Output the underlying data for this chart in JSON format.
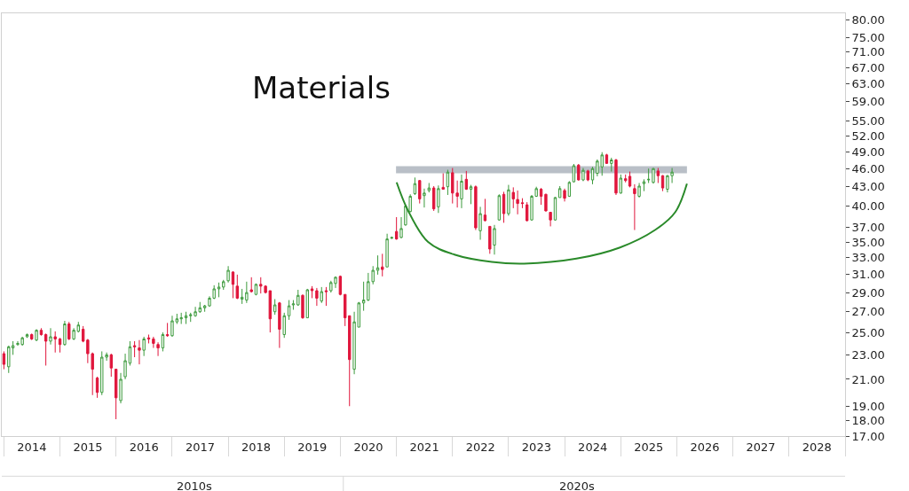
{
  "chart_data": {
    "type": "candlestick",
    "title": "Materials",
    "x": [
      "2014-01",
      "2014-02",
      "2014-03",
      "2014-04",
      "2014-05",
      "2014-06",
      "2014-07",
      "2014-08",
      "2014-09",
      "2014-10",
      "2014-11",
      "2014-12",
      "2015-01",
      "2015-02",
      "2015-03",
      "2015-04",
      "2015-05",
      "2015-06",
      "2015-07",
      "2015-08",
      "2015-09",
      "2015-10",
      "2015-11",
      "2015-12",
      "2016-01",
      "2016-02",
      "2016-03",
      "2016-04",
      "2016-05",
      "2016-06",
      "2016-07",
      "2016-08",
      "2016-09",
      "2016-10",
      "2016-11",
      "2016-12",
      "2017-01",
      "2017-02",
      "2017-03",
      "2017-04",
      "2017-05",
      "2017-06",
      "2017-07",
      "2017-08",
      "2017-09",
      "2017-10",
      "2017-11",
      "2017-12",
      "2018-01",
      "2018-02",
      "2018-03",
      "2018-04",
      "2018-05",
      "2018-06",
      "2018-07",
      "2018-08",
      "2018-09",
      "2018-10",
      "2018-11",
      "2018-12",
      "2019-01",
      "2019-02",
      "2019-03",
      "2019-04",
      "2019-05",
      "2019-06",
      "2019-07",
      "2019-08",
      "2019-09",
      "2019-10",
      "2019-11",
      "2019-12",
      "2020-01",
      "2020-02",
      "2020-03",
      "2020-04",
      "2020-05",
      "2020-06",
      "2020-07",
      "2020-08",
      "2020-09",
      "2020-10",
      "2020-11",
      "2020-12",
      "2021-01",
      "2021-02",
      "2021-03",
      "2021-04",
      "2021-05",
      "2021-06",
      "2021-07",
      "2021-08",
      "2021-09",
      "2021-10",
      "2021-11",
      "2021-12",
      "2022-01",
      "2022-02",
      "2022-03",
      "2022-04",
      "2022-05",
      "2022-06",
      "2022-07",
      "2022-08",
      "2022-09",
      "2022-10",
      "2022-11",
      "2022-12",
      "2023-01",
      "2023-02",
      "2023-03",
      "2023-04",
      "2023-05",
      "2023-06",
      "2023-07",
      "2023-08",
      "2023-09",
      "2023-10",
      "2023-11",
      "2023-12",
      "2024-01",
      "2024-02",
      "2024-03",
      "2024-04",
      "2024-05",
      "2024-06",
      "2024-07",
      "2024-08",
      "2024-09",
      "2024-10",
      "2024-11",
      "2024-12",
      "2025-01",
      "2025-02",
      "2025-03",
      "2025-04",
      "2025-05",
      "2025-06",
      "2025-07",
      "2025-08",
      "2025-09",
      "2025-10",
      "2025-11",
      "2025-12"
    ],
    "ohlc": [
      [
        23.1,
        23.3,
        21.8,
        22.2
      ],
      [
        22.0,
        23.8,
        21.5,
        23.7
      ],
      [
        23.6,
        24.2,
        23.0,
        23.8
      ],
      [
        23.9,
        24.2,
        23.8,
        24.0
      ],
      [
        23.9,
        24.6,
        23.8,
        24.5
      ],
      [
        24.6,
        24.9,
        24.5,
        24.8
      ],
      [
        24.8,
        24.9,
        24.3,
        24.4
      ],
      [
        24.3,
        25.3,
        24.2,
        25.2
      ],
      [
        25.2,
        25.4,
        24.7,
        24.8
      ],
      [
        24.8,
        24.9,
        22.1,
        24.2
      ],
      [
        24.2,
        25.4,
        23.9,
        24.6
      ],
      [
        24.6,
        25.1,
        23.2,
        24.4
      ],
      [
        24.4,
        24.5,
        23.2,
        23.9
      ],
      [
        23.9,
        26.1,
        23.8,
        25.8
      ],
      [
        25.8,
        26.0,
        24.3,
        24.4
      ],
      [
        24.4,
        25.4,
        24.3,
        25.2
      ],
      [
        25.1,
        26.0,
        25.0,
        25.7
      ],
      [
        25.3,
        25.6,
        24.1,
        24.2
      ],
      [
        24.3,
        24.4,
        22.3,
        23.1
      ],
      [
        23.1,
        23.2,
        19.8,
        21.8
      ],
      [
        21.1,
        21.2,
        19.6,
        20.0
      ],
      [
        20.0,
        23.3,
        19.8,
        22.8
      ],
      [
        22.8,
        23.2,
        22.5,
        23.0
      ],
      [
        23.0,
        23.1,
        21.2,
        21.9
      ],
      [
        21.8,
        21.8,
        18.1,
        19.6
      ],
      [
        19.4,
        21.5,
        19.2,
        21.0
      ],
      [
        21.2,
        23.1,
        21.0,
        22.5
      ],
      [
        22.3,
        24.2,
        22.1,
        23.7
      ],
      [
        23.8,
        24.2,
        22.8,
        23.7
      ],
      [
        23.6,
        24.3,
        22.2,
        23.4
      ],
      [
        23.4,
        24.6,
        22.9,
        24.4
      ],
      [
        24.5,
        24.8,
        24.0,
        24.4
      ],
      [
        24.4,
        24.6,
        23.6,
        24.0
      ],
      [
        23.9,
        24.1,
        22.9,
        23.6
      ],
      [
        23.6,
        25.0,
        23.3,
        24.8
      ],
      [
        24.8,
        25.9,
        24.6,
        24.7
      ],
      [
        24.7,
        26.6,
        24.6,
        26.1
      ],
      [
        26.0,
        26.8,
        25.8,
        26.3
      ],
      [
        26.3,
        26.9,
        25.8,
        26.4
      ],
      [
        26.4,
        27.0,
        25.8,
        26.6
      ],
      [
        26.6,
        26.9,
        26.0,
        26.7
      ],
      [
        26.6,
        27.5,
        26.5,
        27.0
      ],
      [
        27.0,
        28.0,
        26.9,
        27.4
      ],
      [
        27.4,
        27.7,
        27.0,
        27.6
      ],
      [
        27.6,
        28.6,
        27.5,
        28.4
      ],
      [
        28.4,
        29.8,
        28.3,
        29.4
      ],
      [
        29.4,
        30.1,
        28.5,
        29.6
      ],
      [
        29.6,
        30.4,
        29.3,
        30.2
      ],
      [
        30.3,
        32.0,
        30.1,
        31.5
      ],
      [
        31.3,
        31.4,
        28.4,
        29.9
      ],
      [
        29.7,
        31.0,
        28.3,
        28.4
      ],
      [
        28.3,
        29.4,
        27.8,
        28.5
      ],
      [
        28.2,
        30.2,
        27.9,
        29.0
      ],
      [
        29.3,
        30.7,
        29.0,
        29.1
      ],
      [
        28.8,
        30.0,
        28.7,
        29.9
      ],
      [
        29.9,
        30.7,
        28.9,
        29.7
      ],
      [
        29.7,
        29.8,
        28.9,
        29.0
      ],
      [
        29.2,
        29.2,
        25.0,
        26.3
      ],
      [
        27.0,
        28.3,
        26.7,
        27.7
      ],
      [
        27.9,
        28.0,
        23.6,
        25.3
      ],
      [
        24.8,
        26.9,
        24.5,
        26.6
      ],
      [
        26.6,
        28.2,
        26.2,
        27.6
      ],
      [
        27.7,
        28.2,
        27.2,
        27.8
      ],
      [
        27.7,
        29.3,
        27.6,
        28.7
      ],
      [
        28.7,
        28.8,
        26.3,
        26.4
      ],
      [
        26.4,
        29.4,
        26.4,
        29.3
      ],
      [
        29.4,
        29.7,
        28.4,
        29.2
      ],
      [
        29.2,
        29.5,
        27.6,
        28.4
      ],
      [
        28.1,
        29.6,
        27.9,
        29.1
      ],
      [
        29.2,
        29.6,
        27.6,
        29.1
      ],
      [
        29.2,
        30.3,
        29.0,
        30.1
      ],
      [
        30.0,
        30.8,
        29.5,
        30.7
      ],
      [
        30.8,
        30.9,
        28.7,
        28.8
      ],
      [
        28.8,
        28.8,
        25.6,
        26.4
      ],
      [
        26.6,
        26.6,
        19.0,
        22.6
      ],
      [
        21.8,
        27.0,
        21.4,
        26.0
      ],
      [
        25.5,
        28.0,
        25.5,
        27.9
      ],
      [
        27.9,
        30.2,
        27.1,
        28.2
      ],
      [
        28.2,
        31.2,
        28.1,
        30.2
      ],
      [
        30.2,
        32.0,
        29.9,
        31.5
      ],
      [
        31.5,
        33.3,
        31.0,
        31.8
      ],
      [
        31.9,
        33.5,
        30.8,
        31.6
      ],
      [
        31.9,
        36.1,
        31.9,
        35.4
      ],
      [
        35.5,
        35.7,
        35.4,
        35.6
      ],
      [
        36.4,
        38.4,
        35.3,
        35.4
      ],
      [
        35.6,
        38.4,
        35.5,
        36.8
      ],
      [
        37.3,
        40.2,
        37.2,
        40.0
      ],
      [
        39.2,
        41.8,
        39.1,
        41.5
      ],
      [
        41.9,
        44.5,
        41.7,
        43.5
      ],
      [
        44.0,
        44.1,
        40.4,
        41.1
      ],
      [
        41.6,
        42.7,
        39.8,
        42.0
      ],
      [
        42.4,
        43.6,
        42.1,
        42.8
      ],
      [
        42.8,
        43.1,
        39.3,
        39.6
      ],
      [
        39.9,
        43.2,
        39.0,
        42.7
      ],
      [
        42.9,
        45.2,
        42.6,
        42.6
      ],
      [
        43.0,
        45.8,
        41.7,
        45.4
      ],
      [
        45.3,
        46.1,
        40.4,
        42.0
      ],
      [
        42.0,
        44.0,
        39.8,
        41.5
      ],
      [
        41.1,
        45.0,
        39.7,
        43.9
      ],
      [
        44.2,
        45.6,
        42.5,
        42.6
      ],
      [
        42.6,
        43.3,
        40.3,
        43.0
      ],
      [
        43.0,
        43.2,
        36.6,
        36.9
      ],
      [
        36.5,
        39.9,
        35.3,
        38.9
      ],
      [
        38.7,
        41.1,
        37.8,
        37.9
      ],
      [
        37.1,
        37.1,
        33.5,
        34.1
      ],
      [
        34.6,
        37.3,
        33.4,
        36.8
      ],
      [
        38.0,
        41.8,
        37.9,
        41.6
      ],
      [
        41.8,
        42.2,
        37.6,
        38.9
      ],
      [
        38.9,
        43.3,
        38.6,
        42.5
      ],
      [
        42.1,
        42.9,
        39.7,
        41.1
      ],
      [
        41.0,
        42.4,
        38.8,
        40.4
      ],
      [
        40.5,
        41.2,
        39.7,
        40.4
      ],
      [
        40.2,
        40.6,
        37.8,
        37.9
      ],
      [
        38.0,
        41.7,
        37.9,
        41.5
      ],
      [
        41.5,
        43.0,
        41.4,
        42.7
      ],
      [
        42.6,
        42.8,
        40.2,
        41.5
      ],
      [
        41.8,
        41.9,
        39.2,
        39.3
      ],
      [
        39.1,
        39.1,
        37.1,
        38.0
      ],
      [
        38.0,
        41.4,
        37.9,
        41.3
      ],
      [
        41.3,
        43.1,
        41.3,
        42.7
      ],
      [
        42.4,
        42.7,
        40.7,
        41.2
      ],
      [
        41.5,
        43.9,
        41.4,
        43.7
      ],
      [
        43.8,
        46.8,
        43.7,
        46.5
      ],
      [
        46.6,
        46.8,
        44.0,
        44.1
      ],
      [
        44.1,
        46.1,
        43.9,
        45.7
      ],
      [
        45.6,
        45.8,
        43.9,
        44.1
      ],
      [
        44.1,
        46.3,
        43.4,
        46.0
      ],
      [
        45.2,
        47.6,
        44.7,
        47.3
      ],
      [
        46.3,
        48.9,
        44.8,
        48.4
      ],
      [
        48.4,
        48.6,
        46.8,
        46.9
      ],
      [
        46.9,
        47.9,
        45.5,
        47.5
      ],
      [
        47.5,
        47.7,
        41.7,
        42.0
      ],
      [
        42.0,
        45.0,
        41.9,
        44.4
      ],
      [
        44.3,
        45.0,
        43.7,
        44.0
      ],
      [
        44.7,
        45.5,
        42.9,
        43.1
      ],
      [
        42.7,
        43.4,
        36.6,
        41.9
      ],
      [
        41.5,
        43.6,
        41.3,
        43.1
      ],
      [
        43.5,
        44.2,
        42.3,
        43.8
      ],
      [
        44.1,
        46.0,
        43.6,
        44.2
      ],
      [
        43.7,
        46.1,
        43.5,
        46.0
      ],
      [
        45.6,
        46.1,
        43.6,
        44.8
      ],
      [
        44.8,
        44.9,
        42.3,
        42.8
      ],
      [
        42.6,
        44.9,
        42.1,
        44.8
      ],
      [
        44.8,
        46.1,
        43.6,
        45.4
      ]
    ],
    "colors": [
      "#e0163c",
      "#3c9a3c",
      "#3c9a3c",
      "#3c9a3c",
      "#3c9a3c",
      "#3c9a3c",
      "#e0163c",
      "#3c9a3c",
      "#e0163c",
      "#e0163c",
      "#3c9a3c",
      "#e0163c",
      "#e0163c",
      "#3c9a3c",
      "#e0163c",
      "#3c9a3c",
      "#3c9a3c",
      "#e0163c",
      "#e0163c",
      "#e0163c",
      "#e0163c",
      "#3c9a3c",
      "#3c9a3c",
      "#e0163c",
      "#e0163c",
      "#3c9a3c",
      "#3c9a3c",
      "#3c9a3c",
      "#e0163c",
      "#e0163c",
      "#3c9a3c",
      "#e0163c",
      "#e0163c",
      "#e0163c",
      "#3c9a3c",
      "#e0163c",
      "#3c9a3c",
      "#3c9a3c",
      "#3c9a3c",
      "#3c9a3c",
      "#3c9a3c",
      "#3c9a3c",
      "#3c9a3c",
      "#3c9a3c",
      "#3c9a3c",
      "#3c9a3c",
      "#3c9a3c",
      "#3c9a3c",
      "#3c9a3c",
      "#e0163c",
      "#e0163c",
      "#3c9a3c",
      "#3c9a3c",
      "#e0163c",
      "#3c9a3c",
      "#e0163c",
      "#e0163c",
      "#e0163c",
      "#3c9a3c",
      "#e0163c",
      "#3c9a3c",
      "#3c9a3c",
      "#3c9a3c",
      "#3c9a3c",
      "#e0163c",
      "#3c9a3c",
      "#e0163c",
      "#e0163c",
      "#3c9a3c",
      "#e0163c",
      "#3c9a3c",
      "#3c9a3c",
      "#e0163c",
      "#e0163c",
      "#e0163c",
      "#3c9a3c",
      "#3c9a3c",
      "#3c9a3c",
      "#3c9a3c",
      "#3c9a3c",
      "#3c9a3c",
      "#e0163c",
      "#3c9a3c",
      "#3c9a3c",
      "#e0163c",
      "#3c9a3c",
      "#3c9a3c",
      "#3c9a3c",
      "#3c9a3c",
      "#e0163c",
      "#3c9a3c",
      "#3c9a3c",
      "#e0163c",
      "#3c9a3c",
      "#e0163c",
      "#3c9a3c",
      "#e0163c",
      "#e0163c",
      "#3c9a3c",
      "#e0163c",
      "#3c9a3c",
      "#e0163c",
      "#3c9a3c",
      "#e0163c",
      "#e0163c",
      "#3c9a3c",
      "#3c9a3c",
      "#e0163c",
      "#3c9a3c",
      "#e0163c",
      "#e0163c",
      "#e0163c",
      "#e0163c",
      "#3c9a3c",
      "#3c9a3c",
      "#e0163c",
      "#e0163c",
      "#e0163c",
      "#3c9a3c",
      "#3c9a3c",
      "#e0163c",
      "#3c9a3c",
      "#3c9a3c",
      "#e0163c",
      "#3c9a3c",
      "#e0163c",
      "#3c9a3c",
      "#3c9a3c",
      "#3c9a3c",
      "#e0163c",
      "#3c9a3c",
      "#e0163c",
      "#3c9a3c",
      "#e0163c",
      "#e0163c",
      "#e0163c",
      "#3c9a3c",
      "#3c9a3c",
      "#3c9a3c",
      "#3c9a3c",
      "#e0163c",
      "#e0163c",
      "#3c9a3c",
      "#3c9a3c"
    ],
    "series": [
      {
        "type": "line",
        "color": "#b9bfc7",
        "x": [
          "2020-12-29",
          "2026-03-08"
        ],
        "values": [
          45.8,
          45.8
        ]
      },
      {
        "type": "line",
        "color": "#2a8a2a",
        "x": [
          "2021-01-02",
          "2021-03-16",
          "2021-07-26",
          "2022-01-13",
          "2022-09-14",
          "2023-04-12",
          "2024-03-18",
          "2024-12-27",
          "2025-08-12",
          "2025-12-21",
          "2026-03-08"
        ],
        "values": [
          43.7,
          39.4,
          35.0,
          33.4,
          32.5,
          32.3,
          32.9,
          34.3,
          36.6,
          39.1,
          43.5
        ]
      }
    ],
    "xlim": [
      "2013-12-18",
      "2029-01-01"
    ],
    "xticks": [
      {
        "value": "2014-07-02",
        "label": "2014"
      },
      {
        "value": "2015-07-02",
        "label": "2015"
      },
      {
        "value": "2016-07-02",
        "label": "2016"
      },
      {
        "value": "2017-07-02",
        "label": "2017"
      },
      {
        "value": "2018-07-02",
        "label": "2018"
      },
      {
        "value": "2019-07-02",
        "label": "2019"
      },
      {
        "value": "2020-07-02",
        "label": "2020"
      },
      {
        "value": "2021-07-02",
        "label": "2021"
      },
      {
        "value": "2022-07-02",
        "label": "2022"
      },
      {
        "value": "2023-07-02",
        "label": "2023"
      },
      {
        "value": "2024-07-02",
        "label": "2024"
      },
      {
        "value": "2025-07-02",
        "label": "2025"
      },
      {
        "value": "2026-07-02",
        "label": "2026"
      },
      {
        "value": "2027-07-02",
        "label": "2027"
      },
      {
        "value": "2028-07-02",
        "label": "2028"
      }
    ],
    "ylim": [
      17,
      82
    ],
    "yticks": [
      {
        "value": 17,
        "label": "17.00"
      },
      {
        "value": 18,
        "label": "18.00"
      },
      {
        "value": 19,
        "label": "19.00"
      },
      {
        "value": 21,
        "label": "21.00"
      },
      {
        "value": 23,
        "label": "23.00"
      },
      {
        "value": 25,
        "label": "25.00"
      },
      {
        "value": 27,
        "label": "27.00"
      },
      {
        "value": 29,
        "label": "29.00"
      },
      {
        "value": 31,
        "label": "31.00"
      },
      {
        "value": 33,
        "label": "33.00"
      },
      {
        "value": 35,
        "label": "35.00"
      },
      {
        "value": 37,
        "label": "37.00"
      },
      {
        "value": 40,
        "label": "40.00"
      },
      {
        "value": 43,
        "label": "43.00"
      },
      {
        "value": 46,
        "label": "46.00"
      },
      {
        "value": 49,
        "label": "49.00"
      },
      {
        "value": 52,
        "label": "52.00"
      },
      {
        "value": 55,
        "label": "55.00"
      },
      {
        "value": 59,
        "label": "59.00"
      },
      {
        "value": 63,
        "label": "63.00"
      },
      {
        "value": 67,
        "label": "67.00"
      },
      {
        "value": 71,
        "label": "71.00"
      },
      {
        "value": 75,
        "label": "75.00"
      },
      {
        "value": 80,
        "label": "80.00"
      }
    ],
    "log": true,
    "grid": false,
    "annotations": [
      "2010s",
      "2020s"
    ]
  }
}
